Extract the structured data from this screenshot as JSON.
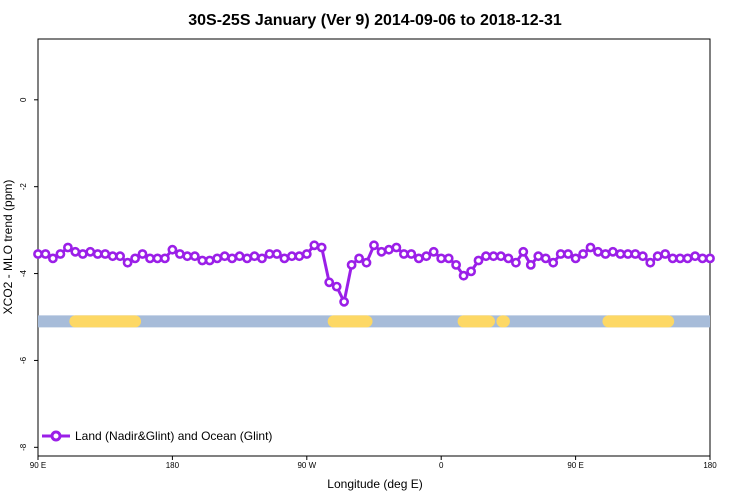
{
  "chart_data": {
    "type": "line",
    "title": "30S-25S January (Ver 9)   2014-09-06 to 2018-12-31",
    "xlabel": "Longitude (deg E)",
    "ylabel": "XCO2 - MLO trend (ppm)",
    "x_ticks": [
      {
        "x": 90,
        "label": "90 E"
      },
      {
        "x": 180,
        "label": "180"
      },
      {
        "x": 270,
        "label": "90 W"
      },
      {
        "x": 360,
        "label": "0"
      },
      {
        "x": 450,
        "label": "90 E"
      },
      {
        "x": 540,
        "label": "180"
      }
    ],
    "y_ticks": [
      0,
      -2,
      -4,
      -6,
      -8
    ],
    "xlim": [
      90,
      540
    ],
    "ylim": [
      -8.2,
      1.4
    ],
    "grid": false,
    "legend_position": "bottom-left",
    "series": [
      {
        "name": "Land (Nadir&Glint) and Ocean (Glint)",
        "color": "#9b1fe8",
        "x": [
          90,
          95,
          100,
          105,
          110,
          115,
          120,
          125,
          130,
          135,
          140,
          145,
          150,
          155,
          160,
          165,
          170,
          175,
          180,
          185,
          190,
          195,
          200,
          205,
          210,
          215,
          220,
          225,
          230,
          235,
          240,
          245,
          250,
          255,
          260,
          265,
          270,
          275,
          280,
          285,
          290,
          295,
          300,
          305,
          310,
          315,
          320,
          325,
          330,
          335,
          340,
          345,
          350,
          355,
          360,
          365,
          370,
          375,
          380,
          385,
          390,
          395,
          400,
          405,
          410,
          415,
          420,
          425,
          430,
          435,
          440,
          445,
          450,
          455,
          460,
          465,
          470,
          475,
          480,
          485,
          490,
          495,
          500,
          505,
          510,
          515,
          520,
          525,
          530,
          535,
          540
        ],
        "values": [
          -3.55,
          -3.55,
          -3.65,
          -3.55,
          -3.4,
          -3.5,
          -3.55,
          -3.5,
          -3.55,
          -3.55,
          -3.6,
          -3.6,
          -3.75,
          -3.65,
          -3.55,
          -3.65,
          -3.65,
          -3.65,
          -3.45,
          -3.55,
          -3.6,
          -3.6,
          -3.7,
          -3.7,
          -3.65,
          -3.6,
          -3.65,
          -3.6,
          -3.65,
          -3.6,
          -3.65,
          -3.55,
          -3.55,
          -3.65,
          -3.6,
          -3.6,
          -3.55,
          -3.35,
          -3.4,
          -4.2,
          -4.3,
          -4.65,
          -3.8,
          -3.65,
          -3.75,
          -3.35,
          -3.5,
          -3.45,
          -3.4,
          -3.55,
          -3.55,
          -3.65,
          -3.6,
          -3.5,
          -3.65,
          -3.65,
          -3.8,
          -4.05,
          -3.95,
          -3.7,
          -3.6,
          -3.6,
          -3.6,
          -3.65,
          -3.75,
          -3.5,
          -3.8,
          -3.6,
          -3.65,
          -3.75,
          -3.55,
          -3.55,
          -3.65,
          -3.55,
          -3.4,
          -3.5,
          -3.55,
          -3.5,
          -3.55,
          -3.55,
          -3.55,
          -3.6,
          -3.75,
          -3.6,
          -3.55,
          -3.65,
          -3.65,
          -3.65,
          -3.6,
          -3.65,
          -3.65
        ]
      }
    ],
    "surface_band": {
      "y": -5.1,
      "ocean_color": "#a7bcd9",
      "land_color": "#fdd865",
      "land_ranges": [
        [
          115,
          155
        ],
        [
          288,
          310
        ],
        [
          375,
          392
        ],
        [
          401,
          402
        ],
        [
          472,
          512
        ]
      ]
    }
  }
}
